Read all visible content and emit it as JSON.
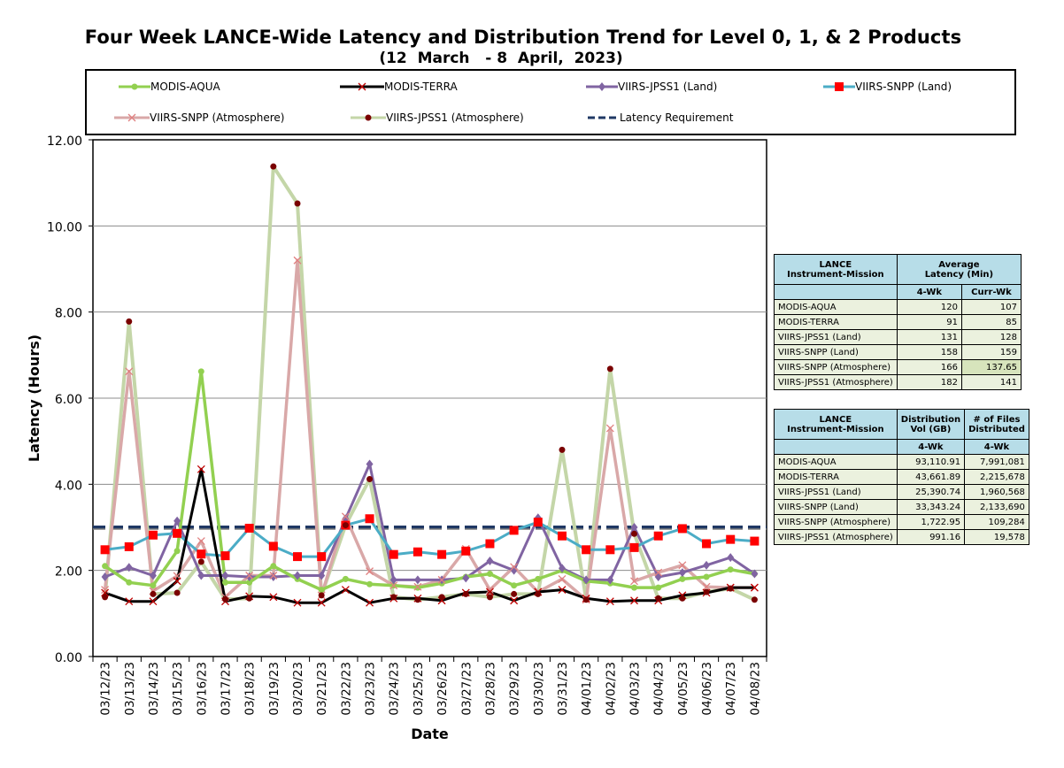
{
  "title": "Four Week LANCE-Wide Latency and Distribution Trend for Level 0, 1, & 2 Products",
  "subtitle": "(12  March   - 8  April,  2023)",
  "legend": {
    "modis_aqua": "MODIS-AQUA",
    "modis_terra": "MODIS-TERRA",
    "viirs_jpss1_land": "VIIRS-JPSS1 (Land)",
    "viirs_snpp_land": "VIIRS-SNPP (Land)",
    "viirs_snpp_atm": "VIIRS-SNPP (Atmosphere)",
    "viirs_jpss1_atm": "VIIRS-JPSS1 (Atmosphere)",
    "latency_req": "Latency Requirement"
  },
  "colors": {
    "modis_aqua": "#92d050",
    "modis_terra": "#000000",
    "viirs_jpss1_land": "#8064a2",
    "viirs_snpp_land": "#4bacc6",
    "viirs_snpp_atm": "#d9a8a8",
    "viirs_jpss1_atm": "#c4d6a8",
    "latency_req": "#1f3864",
    "red_marker": "#ff0000",
    "dark_marker": "#7a0000"
  },
  "chart_data": {
    "type": "line",
    "xlabel": "Date",
    "ylabel": "Latency (Hours)",
    "ylim": [
      0,
      12
    ],
    "yticks": [
      "0.00",
      "2.00",
      "4.00",
      "6.00",
      "8.00",
      "10.00",
      "12.00"
    ],
    "grid": true,
    "categories": [
      "03/12/23",
      "03/13/23",
      "03/14/23",
      "03/15/23",
      "03/16/23",
      "03/17/23",
      "03/18/23",
      "03/19/23",
      "03/20/23",
      "03/21/23",
      "03/22/23",
      "03/23/23",
      "03/24/23",
      "03/25/23",
      "03/26/23",
      "03/27/23",
      "03/28/23",
      "03/29/23",
      "03/30/23",
      "03/31/23",
      "04/01/23",
      "04/02/23",
      "04/03/23",
      "04/04/23",
      "04/05/23",
      "04/06/23",
      "04/07/23",
      "04/08/23"
    ],
    "series": [
      {
        "name": "MODIS-AQUA",
        "key": "modis_aqua",
        "values": [
          2.1,
          1.72,
          1.65,
          2.45,
          6.62,
          1.72,
          1.72,
          2.1,
          1.8,
          1.55,
          1.8,
          1.68,
          1.65,
          1.6,
          1.7,
          1.85,
          1.92,
          1.65,
          1.8,
          2.0,
          1.75,
          1.7,
          1.6,
          1.6,
          1.8,
          1.85,
          2.02,
          1.92
        ]
      },
      {
        "name": "MODIS-TERRA",
        "key": "modis_terra",
        "values": [
          1.48,
          1.28,
          1.28,
          1.75,
          4.35,
          1.28,
          1.4,
          1.38,
          1.25,
          1.25,
          1.55,
          1.25,
          1.35,
          1.35,
          1.3,
          1.48,
          1.5,
          1.3,
          1.5,
          1.55,
          1.35,
          1.28,
          1.3,
          1.3,
          1.42,
          1.48,
          1.6,
          1.6
        ]
      },
      {
        "name": "VIIRS-JPSS1 (Land)",
        "key": "viirs_jpss1_land",
        "values": [
          1.85,
          2.07,
          1.88,
          3.15,
          1.88,
          1.88,
          1.85,
          1.85,
          1.88,
          1.88,
          3.2,
          4.47,
          1.78,
          1.78,
          1.78,
          1.82,
          2.22,
          2.0,
          3.22,
          2.05,
          1.78,
          1.78,
          3.0,
          1.85,
          1.95,
          2.12,
          2.3,
          1.92
        ]
      },
      {
        "name": "VIIRS-SNPP (Land)",
        "key": "viirs_snpp_land",
        "values": [
          2.48,
          2.55,
          2.82,
          2.86,
          2.38,
          2.34,
          2.98,
          2.56,
          2.32,
          2.32,
          3.05,
          3.2,
          2.37,
          2.43,
          2.37,
          2.45,
          2.62,
          2.93,
          3.12,
          2.8,
          2.48,
          2.48,
          2.53,
          2.8,
          2.97,
          2.62,
          2.72,
          2.68
        ]
      },
      {
        "name": "VIIRS-SNPP (Atmosphere)",
        "key": "viirs_snpp_atm",
        "values": [
          1.55,
          6.62,
          1.52,
          1.87,
          2.68,
          1.38,
          1.88,
          1.88,
          9.2,
          1.42,
          3.25,
          1.98,
          1.65,
          1.62,
          1.78,
          2.5,
          1.55,
          2.08,
          1.5,
          1.8,
          1.32,
          5.3,
          1.75,
          1.95,
          2.12,
          1.62,
          1.6,
          1.6
        ]
      },
      {
        "name": "VIIRS-JPSS1 (Atmosphere)",
        "key": "viirs_jpss1_atm",
        "values": [
          1.38,
          7.78,
          1.45,
          1.48,
          2.2,
          1.33,
          1.35,
          11.38,
          10.52,
          1.42,
          3.05,
          4.12,
          1.38,
          1.32,
          1.38,
          1.45,
          1.38,
          1.45,
          1.45,
          4.8,
          1.32,
          6.68,
          2.85,
          1.35,
          1.35,
          1.5,
          1.58,
          1.32
        ]
      },
      {
        "name": "Latency Requirement",
        "key": "latency_req",
        "values": [
          3,
          3,
          3,
          3,
          3,
          3,
          3,
          3,
          3,
          3,
          3,
          3,
          3,
          3,
          3,
          3,
          3,
          3,
          3,
          3,
          3,
          3,
          3,
          3,
          3,
          3,
          3,
          3
        ]
      }
    ]
  },
  "table1": {
    "h_instrument": "LANCE\nInstrument-Mission",
    "h_avg": "Average\nLatency (Min)",
    "h_4wk": "4-Wk",
    "h_curr": "Curr-Wk",
    "rows": [
      {
        "name": "MODIS-AQUA",
        "v1": "120",
        "v2": "107"
      },
      {
        "name": "MODIS-TERRA",
        "v1": "91",
        "v2": "85"
      },
      {
        "name": "VIIRS-JPSS1 (Land)",
        "v1": "131",
        "v2": "128"
      },
      {
        "name": "VIIRS-SNPP (Land)",
        "v1": "158",
        "v2": "159"
      },
      {
        "name": "VIIRS-SNPP (Atmosphere)",
        "v1": "166",
        "v2": "137.65"
      },
      {
        "name": "VIIRS-JPSS1 (Atmosphere)",
        "v1": "182",
        "v2": "141"
      }
    ]
  },
  "table2": {
    "h_instrument": "LANCE\nInstrument-Mission",
    "h_vol": "Distribution\nVol (GB)",
    "h_files": "# of Files\nDistributed",
    "h_4wk_a": "4-Wk",
    "h_4wk_b": "4-Wk",
    "rows": [
      {
        "name": "MODIS-AQUA",
        "v1": "93,110.91",
        "v2": "7,991,081"
      },
      {
        "name": "MODIS-TERRA",
        "v1": "43,661.89",
        "v2": "2,215,678"
      },
      {
        "name": "VIIRS-JPSS1 (Land)",
        "v1": "25,390.74",
        "v2": "1,960,568"
      },
      {
        "name": "VIIRS-SNPP (Land)",
        "v1": "33,343.24",
        "v2": "2,133,690"
      },
      {
        "name": "VIIRS-SNPP (Atmosphere)",
        "v1": "1,722.95",
        "v2": "109,284"
      },
      {
        "name": "VIIRS-JPSS1 (Atmosphere)",
        "v1": "991.16",
        "v2": "19,578"
      }
    ]
  }
}
